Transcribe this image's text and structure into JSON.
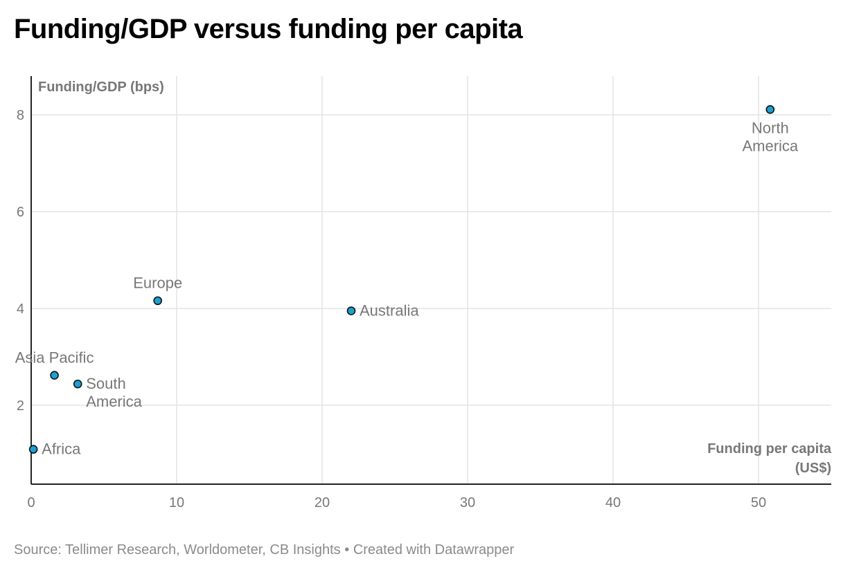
{
  "page": {
    "title": "Funding/GDP versus funding per capita",
    "source": "Source: Tellimer Research, Worldometer, CB Insights",
    "separator": "•",
    "credit": "Created with Datawrapper"
  },
  "colors": {
    "point_fill": "#1aa1cf",
    "point_stroke": "#111111",
    "grid": "#e3e3e3",
    "axis": "#222222",
    "tick_text": "#777777",
    "label_text": "#777777",
    "axis_title": "#777777"
  },
  "chart_data": {
    "type": "scatter",
    "title": "Funding/GDP versus funding per capita",
    "xlabel": "Funding per capita (US$)",
    "xlabel_lines": [
      "Funding per capita",
      "(US$)"
    ],
    "ylabel": "Funding/GDP (bps)",
    "xlim": [
      0,
      55
    ],
    "ylim": [
      0.37,
      8.8
    ],
    "xticks": [
      0,
      10,
      20,
      30,
      40,
      50
    ],
    "yticks": [
      2,
      4,
      6,
      8
    ],
    "grid": true,
    "points": [
      {
        "name": "North America",
        "label_lines": [
          "North",
          "America"
        ],
        "x": 50.8,
        "y": 8.11,
        "label_pos": "below"
      },
      {
        "name": "Europe",
        "label_lines": [
          "Europe"
        ],
        "x": 8.7,
        "y": 4.16,
        "label_pos": "above"
      },
      {
        "name": "Australia",
        "label_lines": [
          "Australia"
        ],
        "x": 22.0,
        "y": 3.95,
        "label_pos": "right"
      },
      {
        "name": "Asia Pacific",
        "label_lines": [
          "Asia Pacific"
        ],
        "x": 1.6,
        "y": 2.62,
        "label_pos": "above"
      },
      {
        "name": "South America",
        "label_lines": [
          "South",
          "America"
        ],
        "x": 3.2,
        "y": 2.44,
        "label_pos": "right"
      },
      {
        "name": "Africa",
        "label_lines": [
          "Africa"
        ],
        "x": 0.15,
        "y": 1.09,
        "label_pos": "right"
      }
    ]
  }
}
